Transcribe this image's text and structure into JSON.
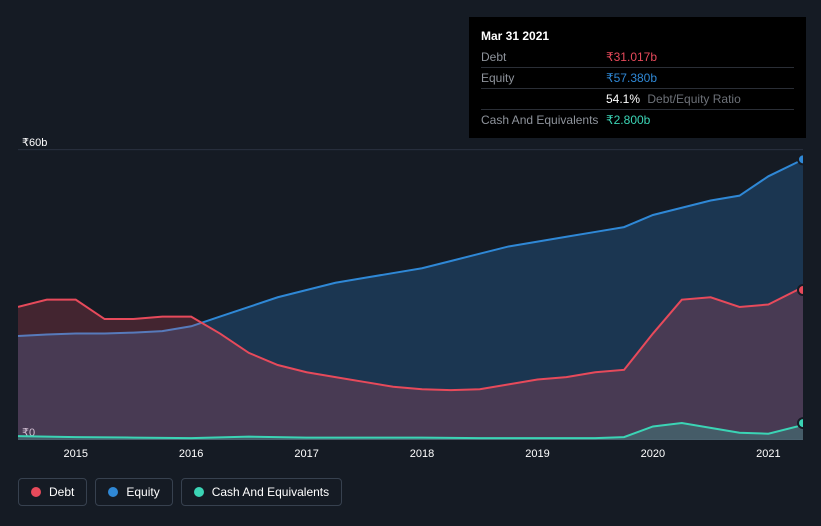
{
  "tooltip": {
    "date": "Mar 31 2021",
    "rows": [
      {
        "label": "Debt",
        "value": "₹31.017b",
        "color": "#e74a5b"
      },
      {
        "label": "Equity",
        "value": "₹57.380b",
        "color": "#2f88d6"
      },
      {
        "label": "",
        "value": "54.1%",
        "extra": "Debt/Equity Ratio",
        "color": "#ffffff"
      },
      {
        "label": "Cash And Equivalents",
        "value": "₹2.800b",
        "color": "#3bd4b5"
      }
    ]
  },
  "chart": {
    "type": "area",
    "background": "#151b24",
    "grid_color": "#2a3240",
    "x_start_year": 2014.5,
    "x_end_year": 2021.3,
    "y_min": 0,
    "y_max": 62,
    "y_ticks": [
      {
        "value": 0,
        "label": "₹0"
      },
      {
        "value": 60,
        "label": "₹60b"
      }
    ],
    "x_ticks": [
      2015,
      2016,
      2017,
      2018,
      2019,
      2020,
      2021
    ],
    "series": [
      {
        "name": "Equity",
        "color": "#2f88d6",
        "fill": "rgba(47,136,214,0.25)",
        "data": [
          [
            2014.5,
            21.5
          ],
          [
            2014.75,
            21.8
          ],
          [
            2015.0,
            22.0
          ],
          [
            2015.25,
            22.0
          ],
          [
            2015.5,
            22.2
          ],
          [
            2015.75,
            22.5
          ],
          [
            2016.0,
            23.5
          ],
          [
            2016.25,
            25.5
          ],
          [
            2016.5,
            27.5
          ],
          [
            2016.75,
            29.5
          ],
          [
            2017.0,
            31.0
          ],
          [
            2017.25,
            32.5
          ],
          [
            2017.5,
            33.5
          ],
          [
            2017.75,
            34.5
          ],
          [
            2018.0,
            35.5
          ],
          [
            2018.25,
            37.0
          ],
          [
            2018.5,
            38.5
          ],
          [
            2018.75,
            40.0
          ],
          [
            2019.0,
            41.0
          ],
          [
            2019.25,
            42.0
          ],
          [
            2019.5,
            43.0
          ],
          [
            2019.75,
            44.0
          ],
          [
            2020.0,
            46.5
          ],
          [
            2020.25,
            48.0
          ],
          [
            2020.5,
            49.5
          ],
          [
            2020.75,
            50.5
          ],
          [
            2021.0,
            54.5
          ],
          [
            2021.25,
            57.4
          ],
          [
            2021.3,
            58.0
          ]
        ]
      },
      {
        "name": "Debt",
        "color": "#e74a5b",
        "fill": "rgba(231,74,91,0.22)",
        "data": [
          [
            2014.5,
            27.5
          ],
          [
            2014.75,
            29.0
          ],
          [
            2015.0,
            29.0
          ],
          [
            2015.25,
            25.0
          ],
          [
            2015.5,
            25.0
          ],
          [
            2015.75,
            25.5
          ],
          [
            2016.0,
            25.5
          ],
          [
            2016.25,
            22.0
          ],
          [
            2016.5,
            18.0
          ],
          [
            2016.75,
            15.5
          ],
          [
            2017.0,
            14.0
          ],
          [
            2017.25,
            13.0
          ],
          [
            2017.5,
            12.0
          ],
          [
            2017.75,
            11.0
          ],
          [
            2018.0,
            10.5
          ],
          [
            2018.25,
            10.3
          ],
          [
            2018.5,
            10.5
          ],
          [
            2018.75,
            11.5
          ],
          [
            2019.0,
            12.5
          ],
          [
            2019.25,
            13.0
          ],
          [
            2019.5,
            14.0
          ],
          [
            2019.75,
            14.5
          ],
          [
            2020.0,
            22.0
          ],
          [
            2020.25,
            29.0
          ],
          [
            2020.5,
            29.5
          ],
          [
            2020.75,
            27.5
          ],
          [
            2021.0,
            28.0
          ],
          [
            2021.25,
            31.0
          ],
          [
            2021.3,
            31.0
          ]
        ]
      },
      {
        "name": "Cash And Equivalents",
        "color": "#3bd4b5",
        "fill": "rgba(59,212,181,0.22)",
        "data": [
          [
            2014.5,
            0.8
          ],
          [
            2015.0,
            0.6
          ],
          [
            2015.5,
            0.5
          ],
          [
            2016.0,
            0.4
          ],
          [
            2016.5,
            0.7
          ],
          [
            2017.0,
            0.5
          ],
          [
            2017.5,
            0.5
          ],
          [
            2018.0,
            0.5
          ],
          [
            2018.5,
            0.4
          ],
          [
            2019.0,
            0.4
          ],
          [
            2019.5,
            0.4
          ],
          [
            2019.75,
            0.6
          ],
          [
            2020.0,
            2.8
          ],
          [
            2020.25,
            3.5
          ],
          [
            2020.5,
            2.5
          ],
          [
            2020.75,
            1.5
          ],
          [
            2021.0,
            1.3
          ],
          [
            2021.25,
            2.8
          ],
          [
            2021.3,
            3.5
          ]
        ]
      }
    ],
    "legend_items": [
      {
        "label": "Debt",
        "color": "#e74a5b"
      },
      {
        "label": "Equity",
        "color": "#2f88d6"
      },
      {
        "label": "Cash And Equivalents",
        "color": "#3bd4b5"
      }
    ]
  }
}
